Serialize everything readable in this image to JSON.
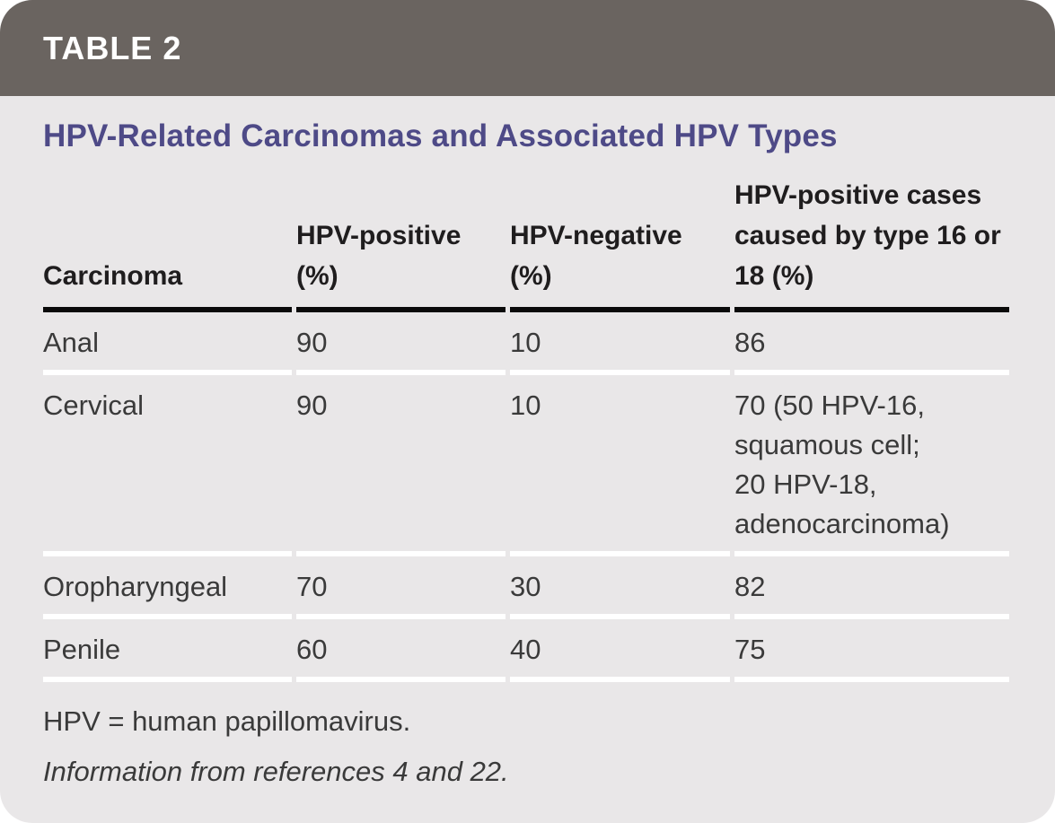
{
  "colors": {
    "banner_background": "#6a6460",
    "body_background": "#e9e7e8",
    "title_text": "#4e4a87",
    "banner_text": "#ffffff",
    "column_header_text": "#1f1d1e",
    "cell_text": "#3a3a3a",
    "header_rule": "#0a0a0a",
    "row_separator": "#ffffff"
  },
  "banner": {
    "label": "TABLE 2"
  },
  "title": "HPV-Related Carcinomas and Associated HPV Types",
  "table": {
    "columns": [
      "Carcinoma",
      "HPV-positive (%)",
      "HPV-negative (%)",
      "HPV-positive cases caused by type 16 or 18 (%)"
    ],
    "rows": [
      {
        "carcinoma": "Anal",
        "hpv_positive_pct": "90",
        "hpv_negative_pct": "10",
        "type_16_18_pct": "86"
      },
      {
        "carcinoma": "Cervical",
        "hpv_positive_pct": "90",
        "hpv_negative_pct": "10",
        "type_16_18_pct": "70 (50 HPV-16,\nsquamous cell;\n20 HPV-18,\nadenocarcinoma)"
      },
      {
        "carcinoma": "Oropharyngeal",
        "hpv_positive_pct": "70",
        "hpv_negative_pct": "30",
        "type_16_18_pct": "82"
      },
      {
        "carcinoma": "Penile",
        "hpv_positive_pct": "60",
        "hpv_negative_pct": "40",
        "type_16_18_pct": "75"
      }
    ]
  },
  "footnotes": {
    "abbreviation": "HPV = human papillomavirus.",
    "source": "Information from references 4 and 22."
  }
}
